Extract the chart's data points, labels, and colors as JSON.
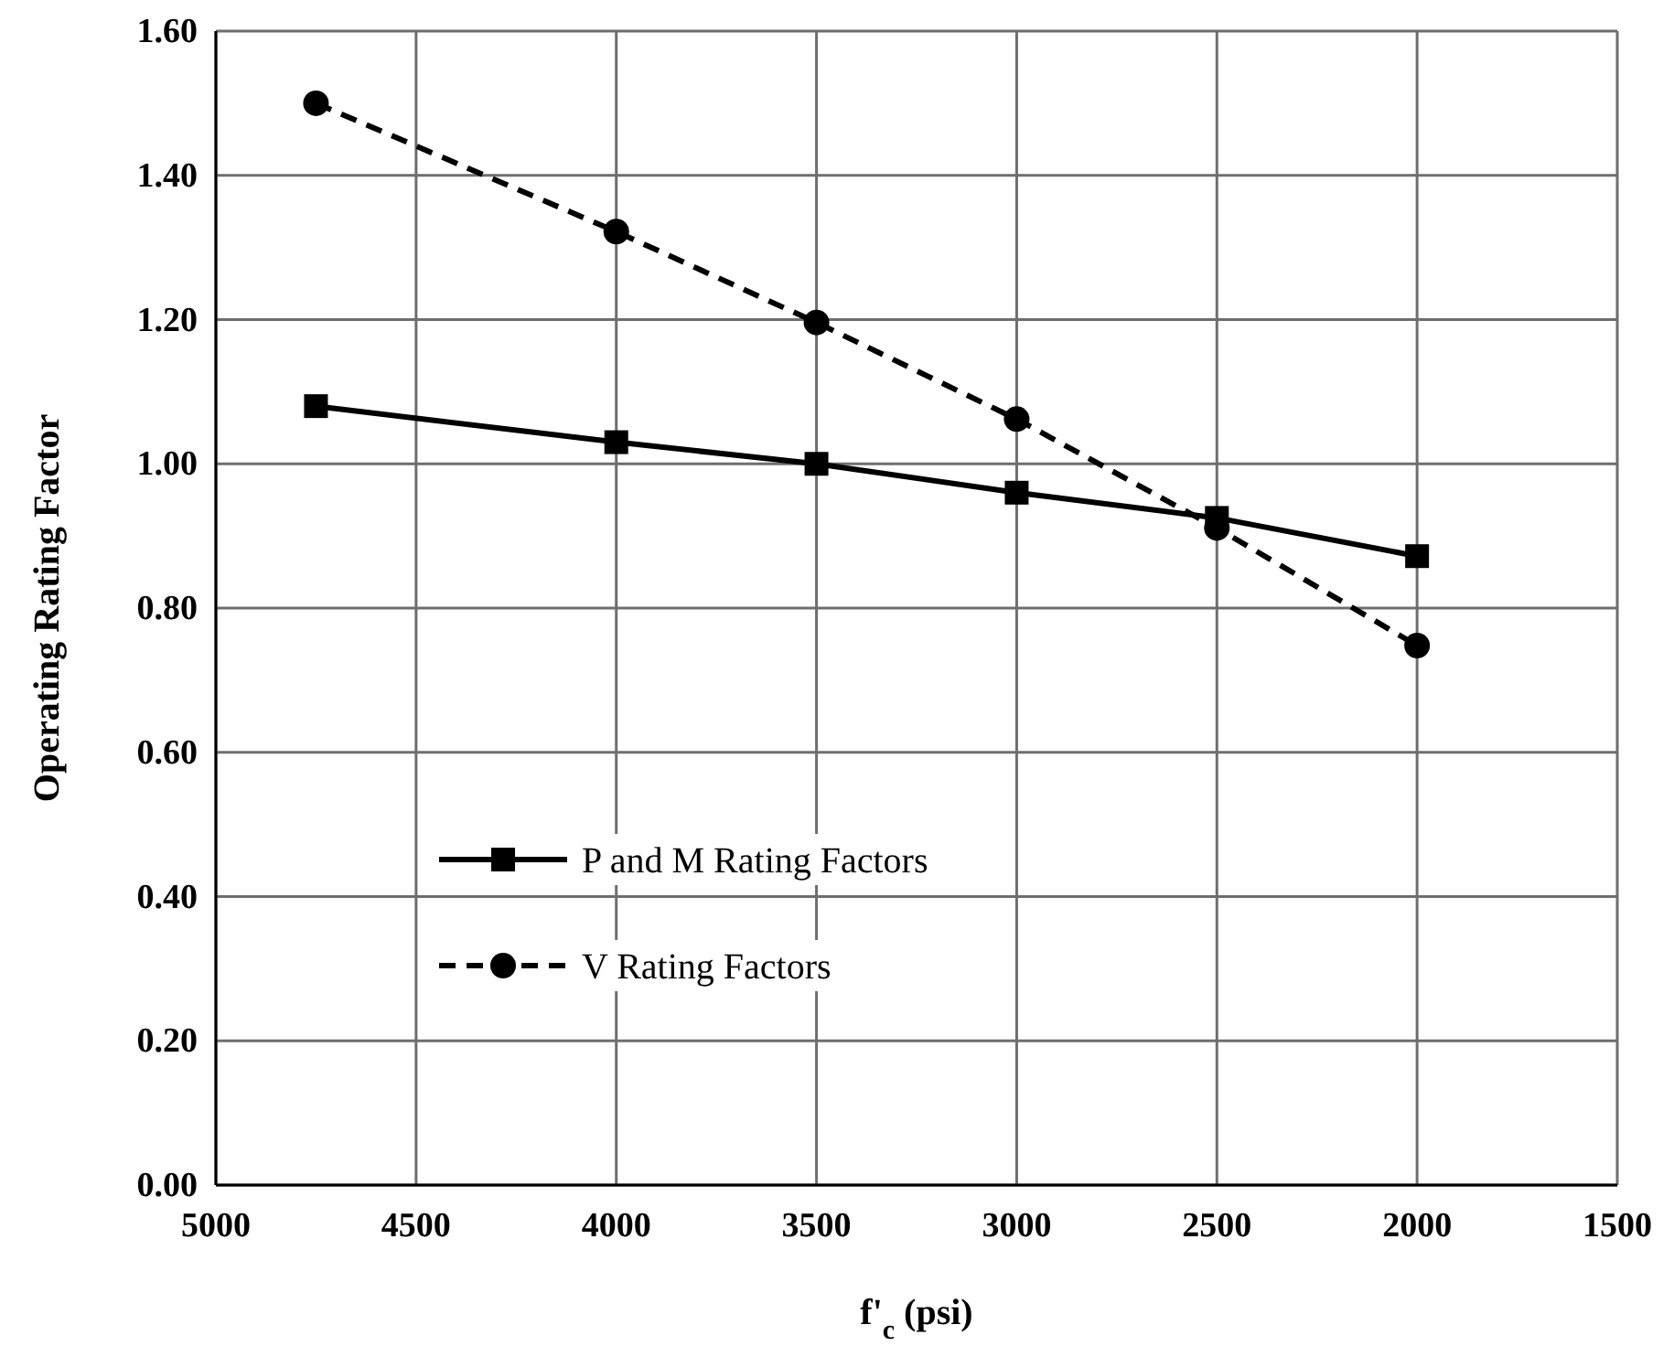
{
  "chart_data": {
    "type": "line",
    "xlabel": "f'$_{c}$ (psi)",
    "ylabel": "Operating Rating Factor",
    "xlim": [
      5000,
      1500
    ],
    "xticks": [
      5000,
      4500,
      4000,
      3500,
      3000,
      2500,
      2000,
      1500
    ],
    "ylim": [
      0,
      1.6
    ],
    "yticks": [
      {
        "value": 0,
        "label": "0.00"
      },
      {
        "value": 0.2,
        "label": "0.20"
      },
      {
        "value": 0.4,
        "label": "0.40"
      },
      {
        "value": 0.6,
        "label": "0.60"
      },
      {
        "value": 0.8,
        "label": "0.80"
      },
      {
        "value": 1,
        "label": "1.00"
      },
      {
        "value": 1.2,
        "label": "1.20"
      },
      {
        "value": 1.4,
        "label": "1.40"
      },
      {
        "value": 1.6,
        "label": "1.60"
      }
    ],
    "grid": true,
    "legend": "left",
    "x": [
      4750,
      4000,
      3500,
      3000,
      2500,
      2000
    ],
    "series": [
      {
        "name": "P and M Rating Factors",
        "color": "#000000",
        "marker": "square",
        "line_style": "solid",
        "values": [
          1.08,
          1.03,
          1.0,
          0.96,
          0.925,
          0.872
        ]
      },
      {
        "name": "V Rating Factors",
        "color": "#000000",
        "marker": "circle",
        "line_style": "dashed",
        "values": [
          1.5,
          1.322,
          1.196,
          1.062,
          0.911,
          0.748
        ]
      }
    ]
  }
}
